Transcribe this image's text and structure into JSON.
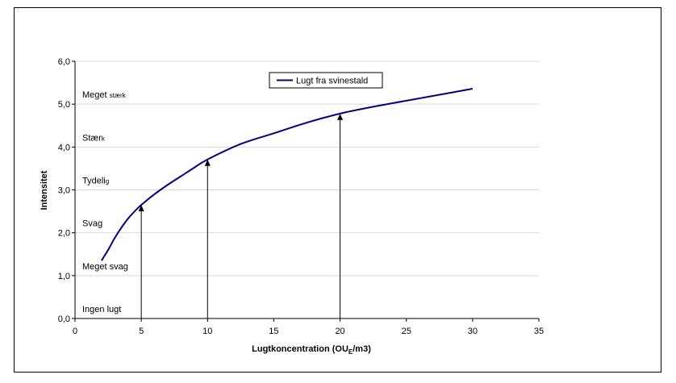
{
  "chart_data": {
    "type": "line",
    "title": "",
    "xlabel": "Lugtkoncentration (OU",
    "xlabel_sub": "E",
    "xlabel_tail": "/m3)",
    "ylabel": "Intensitet",
    "xlim": [
      0,
      35
    ],
    "ylim": [
      0,
      6
    ],
    "x_ticks": [
      0,
      5,
      10,
      15,
      20,
      25,
      30,
      35
    ],
    "x_tick_labels": [
      "0",
      "5",
      "10",
      "15",
      "20",
      "25",
      "30",
      "35"
    ],
    "y_ticks": [
      0,
      1,
      2,
      3,
      4,
      5,
      6
    ],
    "y_tick_labels": [
      "0,0",
      "1,0",
      "2,0",
      "3,0",
      "4,0",
      "5,0",
      "6,0"
    ],
    "grid": "horizontal",
    "legend_position": "top-center",
    "series": [
      {
        "name": "Lugt fra svinestald",
        "color": "#000080",
        "x": [
          2,
          2.5,
          3,
          3.5,
          4,
          4.5,
          5,
          6,
          7,
          8,
          9,
          10,
          12.5,
          15,
          17.5,
          20,
          22.5,
          25,
          27.5,
          30
        ],
        "y": [
          1.35,
          1.6,
          1.88,
          2.12,
          2.33,
          2.5,
          2.65,
          2.9,
          3.12,
          3.32,
          3.52,
          3.71,
          4.07,
          4.32,
          4.57,
          4.78,
          4.94,
          5.08,
          5.22,
          5.36
        ]
      }
    ],
    "arrows": [
      {
        "x": 5,
        "y_from": 0,
        "y_to": 2.65
      },
      {
        "x": 10,
        "y_from": 0,
        "y_to": 3.71
      },
      {
        "x": 20,
        "y_from": 0,
        "y_to": 4.78
      }
    ],
    "level_labels": [
      {
        "main": "Meget ",
        "small": "stærk",
        "y": 5.15
      },
      {
        "main": "Stær",
        "small": "k",
        "y": 4.15
      },
      {
        "main": "Tydeli",
        "small": "g",
        "y": 3.15
      },
      {
        "main": "Svag",
        "small": "",
        "y": 2.15
      },
      {
        "main": "Meget svag",
        "small": "",
        "y": 1.15
      },
      {
        "main": "Ingen lugt",
        "small": "",
        "y": 0.15
      }
    ]
  }
}
